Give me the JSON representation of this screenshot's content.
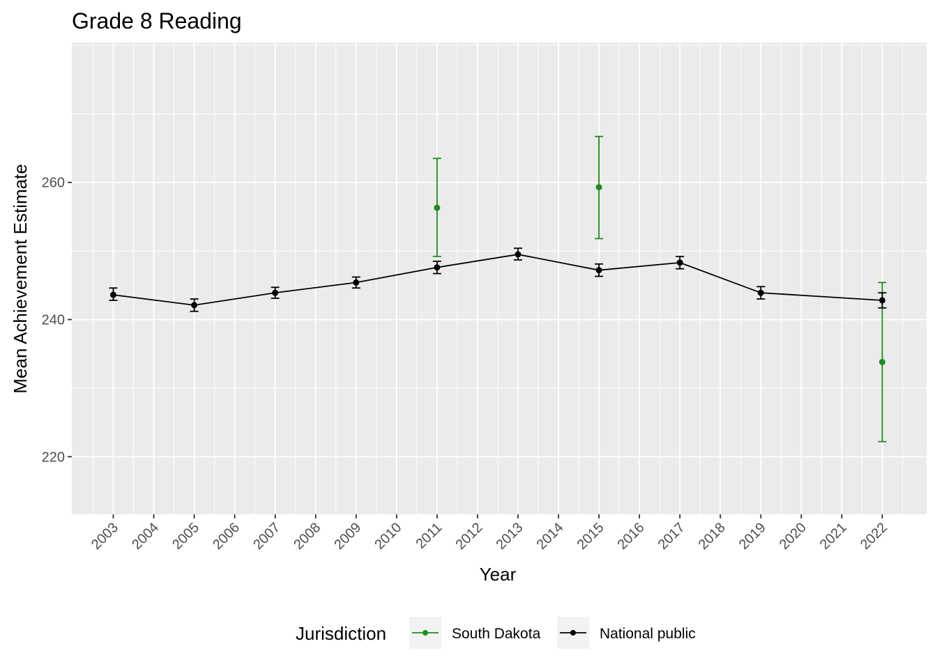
{
  "chart_data": {
    "type": "line",
    "title": "Grade 8 Reading",
    "xlabel": "Year",
    "ylabel": "Mean Achievement Estimate",
    "x_ticks": [
      "2003",
      "2004",
      "2005",
      "2006",
      "2007",
      "2008",
      "2009",
      "2010",
      "2011",
      "2012",
      "2013",
      "2014",
      "2015",
      "2016",
      "2017",
      "2018",
      "2019",
      "2020",
      "2021",
      "2022"
    ],
    "y_ticks": [
      220,
      240,
      260
    ],
    "ylim": [
      211.6,
      280.4
    ],
    "grid": true,
    "legend": {
      "title": "Jurisdiction",
      "position": "bottom",
      "entries": [
        {
          "name": "South Dakota",
          "color": "#228B22"
        },
        {
          "name": "National public",
          "color": "#000000"
        }
      ]
    },
    "series": [
      {
        "name": "South Dakota",
        "color": "#228B22",
        "connected": false,
        "points": [
          {
            "year": 2011,
            "value": 256.3,
            "lower": 249.2,
            "upper": 263.5
          },
          {
            "year": 2015,
            "value": 259.3,
            "lower": 251.8,
            "upper": 266.7
          },
          {
            "year": 2022,
            "value": 233.8,
            "lower": 222.2,
            "upper": 245.4
          }
        ]
      },
      {
        "name": "National public",
        "color": "#000000",
        "connected": true,
        "points": [
          {
            "year": 2003,
            "value": 243.6,
            "lower": 242.8,
            "upper": 244.6
          },
          {
            "year": 2005,
            "value": 242.1,
            "lower": 241.2,
            "upper": 243.0
          },
          {
            "year": 2007,
            "value": 243.9,
            "lower": 243.1,
            "upper": 244.7
          },
          {
            "year": 2009,
            "value": 245.4,
            "lower": 244.6,
            "upper": 246.2
          },
          {
            "year": 2011,
            "value": 247.6,
            "lower": 246.7,
            "upper": 248.5
          },
          {
            "year": 2013,
            "value": 249.5,
            "lower": 248.7,
            "upper": 250.4
          },
          {
            "year": 2015,
            "value": 247.2,
            "lower": 246.3,
            "upper": 248.1
          },
          {
            "year": 2017,
            "value": 248.3,
            "lower": 247.4,
            "upper": 249.2
          },
          {
            "year": 2019,
            "value": 243.9,
            "lower": 243.0,
            "upper": 244.8
          },
          {
            "year": 2022,
            "value": 242.8,
            "lower": 241.7,
            "upper": 243.9
          }
        ]
      }
    ]
  }
}
